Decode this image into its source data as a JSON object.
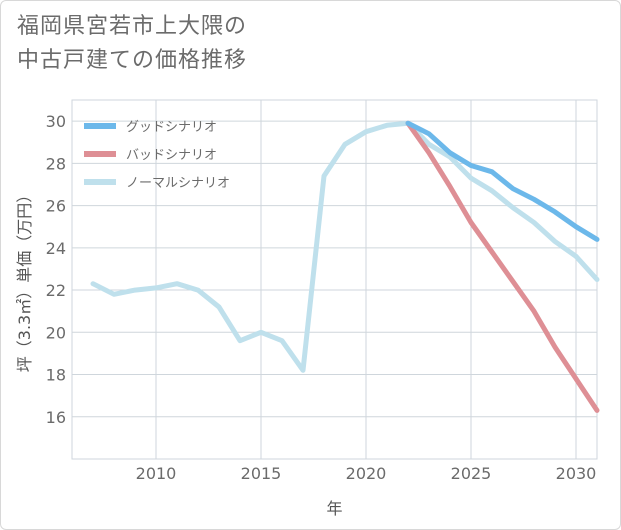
{
  "title_lines": [
    "福岡県宮若市上大隈の",
    "中古戸建ての価格推移"
  ],
  "chart_data": {
    "type": "line",
    "title": "福岡県宮若市上大隈の中古戸建ての価格推移",
    "xlabel": "年",
    "ylabel": "坪（3.3㎡）単価（万円）",
    "xlim": [
      2006,
      2031
    ],
    "ylim": [
      14,
      31
    ],
    "xticks": [
      2010,
      2015,
      2020,
      2025,
      2030
    ],
    "yticks": [
      16,
      18,
      20,
      22,
      24,
      26,
      28,
      30
    ],
    "grid": true,
    "legend_position": "top-left",
    "series": [
      {
        "name": "グッドシナリオ",
        "color": "#6cb8ea",
        "x": [
          2022,
          2023,
          2024,
          2025,
          2026,
          2027,
          2028,
          2029,
          2030,
          2031
        ],
        "values": [
          29.9,
          29.4,
          28.5,
          27.9,
          27.6,
          26.8,
          26.3,
          25.7,
          25.0,
          24.4
        ]
      },
      {
        "name": "バッドシナリオ",
        "color": "#de8f95",
        "x": [
          2022,
          2023,
          2024,
          2025,
          2026,
          2027,
          2028,
          2029,
          2030,
          2031
        ],
        "values": [
          29.9,
          28.5,
          26.9,
          25.2,
          23.8,
          22.4,
          21.0,
          19.3,
          17.8,
          16.3
        ]
      },
      {
        "name": "ノーマルシナリオ",
        "color": "#bfe0ec",
        "x": [
          2007,
          2008,
          2009,
          2010,
          2011,
          2012,
          2013,
          2014,
          2015,
          2016,
          2017,
          2018,
          2019,
          2020,
          2021,
          2022,
          2023,
          2024,
          2025,
          2026,
          2027,
          2028,
          2029,
          2030,
          2031
        ],
        "values": [
          22.3,
          21.8,
          22.0,
          22.1,
          22.3,
          22.0,
          21.2,
          19.6,
          20.0,
          19.6,
          18.2,
          27.4,
          28.9,
          29.5,
          29.8,
          29.9,
          28.9,
          28.3,
          27.3,
          26.7,
          25.9,
          25.2,
          24.3,
          23.6,
          22.5
        ]
      }
    ]
  }
}
